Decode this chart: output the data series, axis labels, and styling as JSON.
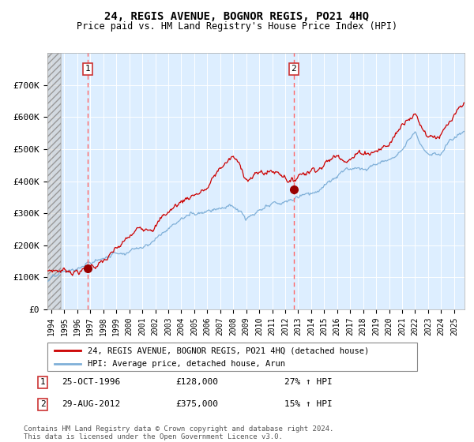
{
  "title": "24, REGIS AVENUE, BOGNOR REGIS, PO21 4HQ",
  "subtitle": "Price paid vs. HM Land Registry's House Price Index (HPI)",
  "legend_line1": "24, REGIS AVENUE, BOGNOR REGIS, PO21 4HQ (detached house)",
  "legend_line2": "HPI: Average price, detached house, Arun",
  "transaction1_date": "25-OCT-1996",
  "transaction1_price": "£128,000",
  "transaction1_hpi": "27% ↑ HPI",
  "transaction2_date": "29-AUG-2012",
  "transaction2_price": "£375,000",
  "transaction2_hpi": "15% ↑ HPI",
  "footnote": "Contains HM Land Registry data © Crown copyright and database right 2024.\nThis data is licensed under the Open Government Licence v3.0.",
  "price_color": "#cc0000",
  "hpi_color": "#80b0d8",
  "vline_color": "#ff6666",
  "marker_color": "#990000",
  "plot_bg_color": "#ddeeff",
  "ylim": [
    0,
    800000
  ],
  "yticks": [
    0,
    100000,
    200000,
    300000,
    400000,
    500000,
    600000,
    700000
  ],
  "ytick_labels": [
    "£0",
    "£100K",
    "£200K",
    "£300K",
    "£400K",
    "£500K",
    "£600K",
    "£700K"
  ],
  "transaction1_x": 1996.82,
  "transaction1_y": 128000,
  "transaction2_x": 2012.66,
  "transaction2_y": 375000,
  "hatch_start": 1993.7,
  "hatch_end": 1994.75,
  "xlim_start": 1993.7,
  "xlim_end": 2025.8
}
